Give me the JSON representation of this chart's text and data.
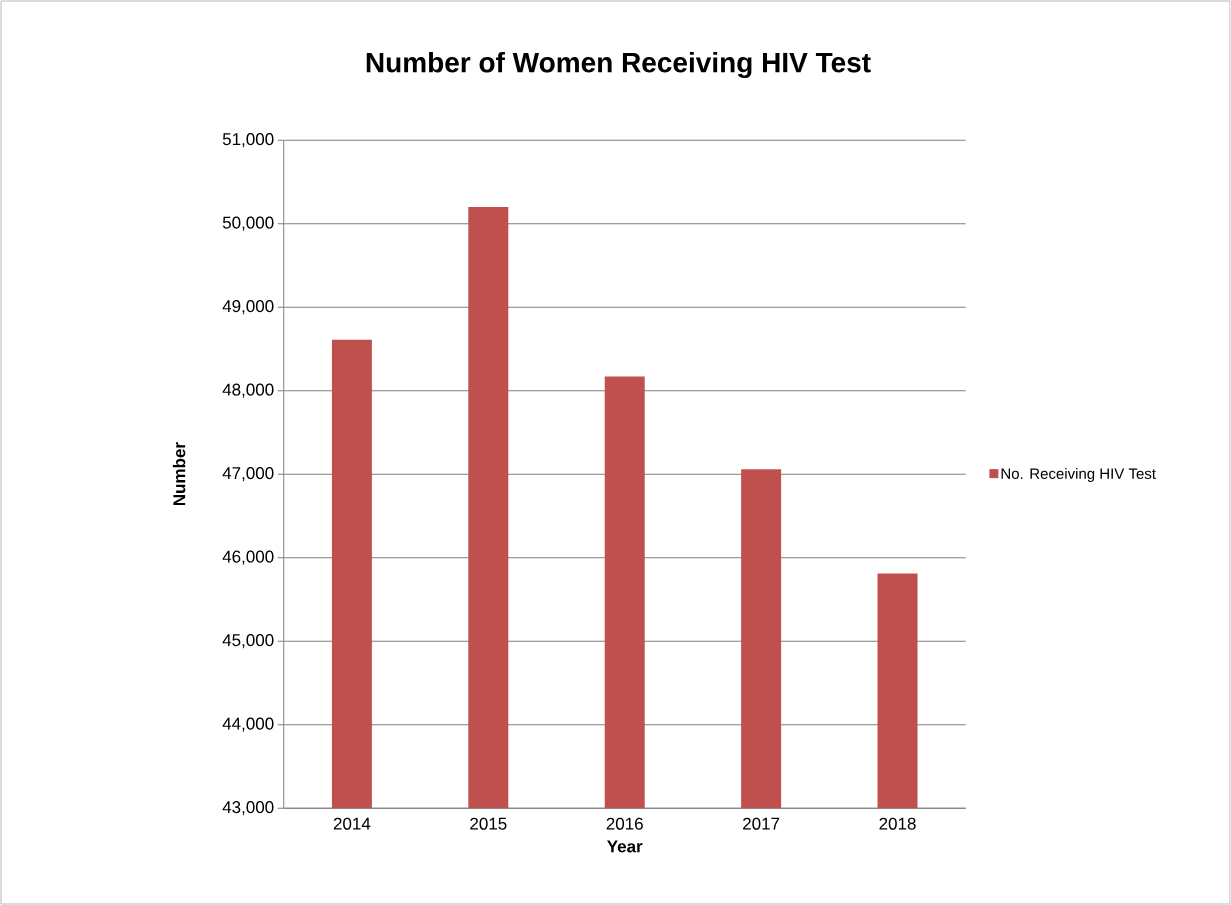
{
  "chart_data": {
    "type": "bar",
    "title": "Number of Women Receiving HIV Test",
    "xlabel": "Year",
    "ylabel": "Number",
    "categories": [
      "2014",
      "2015",
      "2016",
      "2017",
      "2018"
    ],
    "series": [
      {
        "name": "No. Receiving HIV Test",
        "color": "#c0504d",
        "values": [
          48610,
          50200,
          48170,
          47060,
          45810
        ]
      }
    ],
    "ylim": [
      43000,
      51000
    ],
    "yticks": [
      {
        "value": 43000,
        "label": "43,000"
      },
      {
        "value": 44000,
        "label": "44,000"
      },
      {
        "value": 45000,
        "label": "45,000"
      },
      {
        "value": 46000,
        "label": "46,000"
      },
      {
        "value": 47000,
        "label": "47,000"
      },
      {
        "value": 48000,
        "label": "48,000"
      },
      {
        "value": 49000,
        "label": "49,000"
      },
      {
        "value": 50000,
        "label": "50,000"
      },
      {
        "value": 51000,
        "label": "51,000"
      }
    ],
    "grid": "y",
    "legend": "right"
  }
}
